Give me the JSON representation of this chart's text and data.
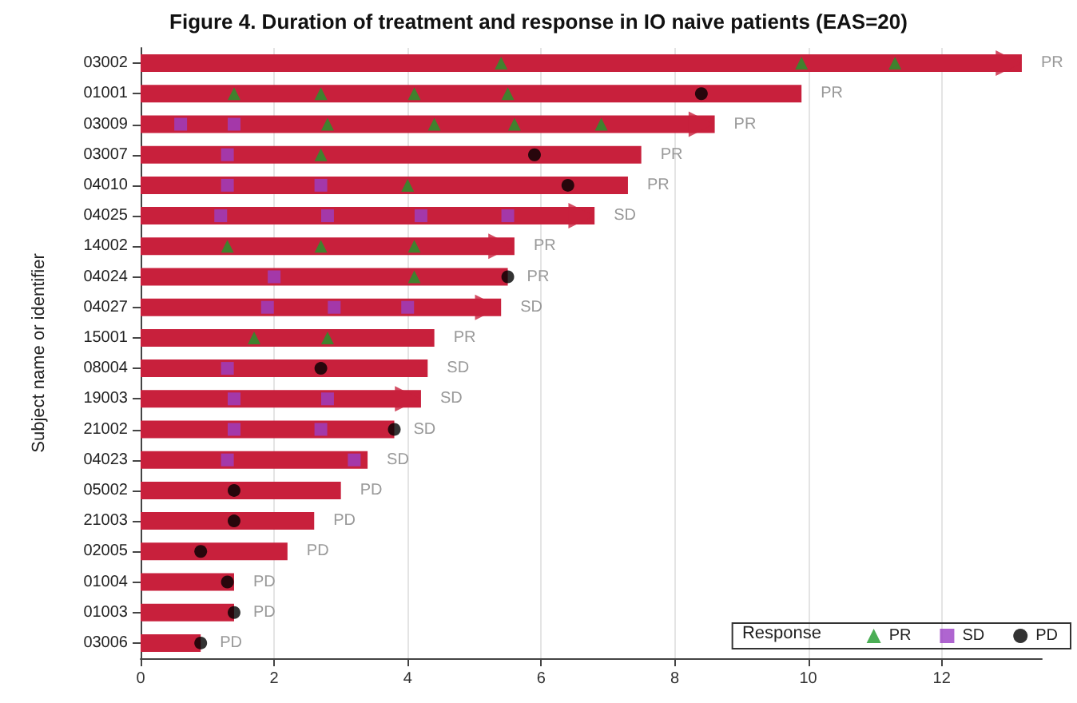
{
  "chart_data": {
    "type": "bar",
    "orientation": "horizontal",
    "title": "Figure 4. Duration of treatment and response in IO naive patients (EAS=20)",
    "ylabel": "Subject name or identifier",
    "legend_title": "Response",
    "categories": [
      "03002",
      "01001",
      "03009",
      "03007",
      "04010",
      "04025",
      "14002",
      "04024",
      "04027",
      "15001",
      "08004",
      "19003",
      "21002",
      "04023",
      "05002",
      "21003",
      "02005",
      "01004",
      "01003",
      "03006"
    ],
    "xlim": [
      0,
      13.5
    ],
    "xticks": [
      0,
      2,
      4,
      6,
      8,
      10,
      12
    ],
    "grid": "x",
    "legend": "bottom right",
    "series": [
      {
        "type": "bar",
        "color": "#c8203c",
        "values": [
          13.2,
          9.9,
          8.6,
          7.5,
          7.3,
          6.8,
          5.6,
          5.5,
          5.4,
          4.4,
          4.3,
          4.2,
          3.8,
          3.4,
          3.0,
          2.6,
          2.2,
          1.4,
          1.4,
          0.9
        ],
        "value_labels": [
          "PR",
          "PR",
          "PR",
          "PR",
          "PR",
          "SD",
          "PR",
          "PR",
          "SD",
          "PR",
          "SD",
          "SD",
          "SD",
          "SD",
          "PD",
          "PD",
          "PD",
          "PD",
          "PD",
          "PD"
        ]
      },
      {
        "type": "scatter",
        "marker": "triangle",
        "color": "#c8203c",
        "x": [
          "03002",
          "03009",
          "04025",
          "14002",
          "04027",
          "19003"
        ],
        "values": [
          13.0,
          8.4,
          6.6,
          5.4,
          5.2,
          4.0
        ]
      },
      {
        "type": "scatter",
        "name": "PR",
        "marker": "triangle",
        "color": "#1e9a2a",
        "x": [
          "03002",
          "03002",
          "03002",
          "01001",
          "01001",
          "01001",
          "01001",
          "03009",
          "03009",
          "03009",
          "03009",
          "03007",
          "04010",
          "14002",
          "14002",
          "14002",
          "04024",
          "15001",
          "15001"
        ],
        "values": [
          5.4,
          9.9,
          11.3,
          1.4,
          2.7,
          4.1,
          5.5,
          2.8,
          4.4,
          5.6,
          6.9,
          2.7,
          4.0,
          1.3,
          2.7,
          4.1,
          4.1,
          1.7,
          2.8
        ]
      },
      {
        "type": "scatter",
        "name": "SD",
        "marker": "square",
        "color": "#9b3fc4",
        "x": [
          "03009",
          "03009",
          "03007",
          "04010",
          "04010",
          "04025",
          "04025",
          "04025",
          "04025",
          "04024",
          "04027",
          "04027",
          "04027",
          "08004",
          "19003",
          "19003",
          "21002",
          "21002",
          "04023",
          "04023"
        ],
        "values": [
          0.6,
          1.4,
          1.3,
          1.3,
          2.7,
          1.2,
          2.8,
          4.2,
          5.5,
          2.0,
          1.9,
          2.9,
          4.0,
          1.3,
          1.4,
          2.8,
          1.4,
          2.7,
          1.3,
          3.2
        ]
      },
      {
        "type": "scatter",
        "name": "PD",
        "marker": "circle",
        "color": "#000000",
        "x": [
          "01001",
          "03007",
          "04010",
          "04024",
          "08004",
          "21002",
          "05002",
          "21003",
          "02005",
          "01004",
          "01003",
          "03006"
        ],
        "values": [
          8.4,
          5.9,
          6.4,
          5.5,
          2.7,
          3.8,
          1.4,
          1.4,
          0.9,
          1.3,
          1.4,
          0.9
        ]
      }
    ]
  }
}
